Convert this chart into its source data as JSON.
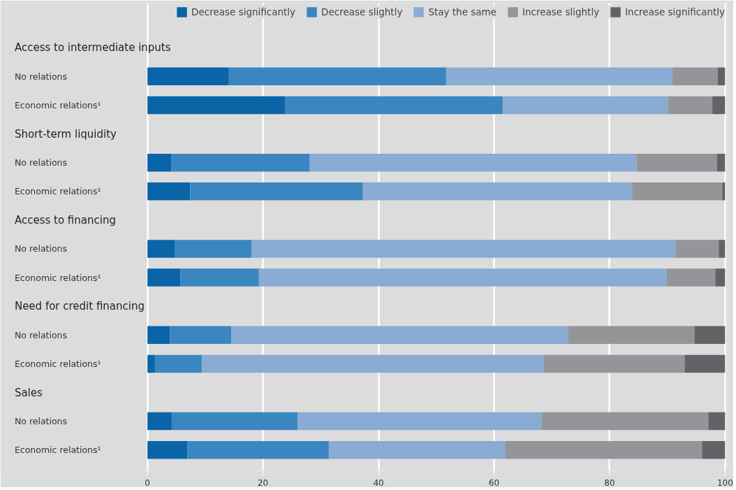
{
  "chart_data": {
    "type": "bar",
    "orientation": "horizontal",
    "stacked": true,
    "categories": [
      "Access to intermediate inputs",
      "No relations",
      "Economic relations¹",
      "Short-term liquidity",
      "No relations",
      "Economic relations¹",
      "Access to financing",
      "No relations",
      "Economic relations¹",
      "Need for credit financing",
      "No relations",
      "Economic relations¹",
      "Sales",
      "No relations",
      "Economic relations¹"
    ],
    "series": [
      {
        "name": "Decrease significantly",
        "color": "#0a64a8",
        "values": [
          null,
          14.1,
          23.8,
          null,
          4.1,
          7.4,
          null,
          4.7,
          5.7,
          null,
          3.9,
          1.3,
          null,
          4.2,
          6.9
        ]
      },
      {
        "name": "Decrease slightly",
        "color": "#3a86c0",
        "values": [
          null,
          37.6,
          37.7,
          null,
          24.0,
          29.9,
          null,
          13.3,
          13.6,
          null,
          10.6,
          8.1,
          null,
          21.8,
          24.5
        ]
      },
      {
        "name": "Stay the same",
        "color": "#89abd4",
        "values": [
          null,
          39.2,
          28.6,
          null,
          56.6,
          46.6,
          null,
          73.4,
          70.6,
          null,
          58.3,
          59.2,
          null,
          42.2,
          30.6
        ]
      },
      {
        "name": "Increase slightly",
        "color": "#939598",
        "values": [
          null,
          7.8,
          7.7,
          null,
          13.9,
          15.6,
          null,
          7.5,
          8.4,
          null,
          21.9,
          24.4,
          null,
          28.9,
          34.0
        ]
      },
      {
        "name": "Increase significantly",
        "color": "#626366",
        "values": [
          null,
          1.3,
          2.2,
          null,
          1.4,
          0.5,
          null,
          1.1,
          1.7,
          null,
          5.3,
          7.0,
          null,
          2.9,
          4.0
        ]
      }
    ],
    "xlim": [
      0,
      100
    ],
    "xticks": [
      0,
      20,
      40,
      60,
      80,
      100
    ],
    "grid": "x",
    "legend": "top"
  }
}
